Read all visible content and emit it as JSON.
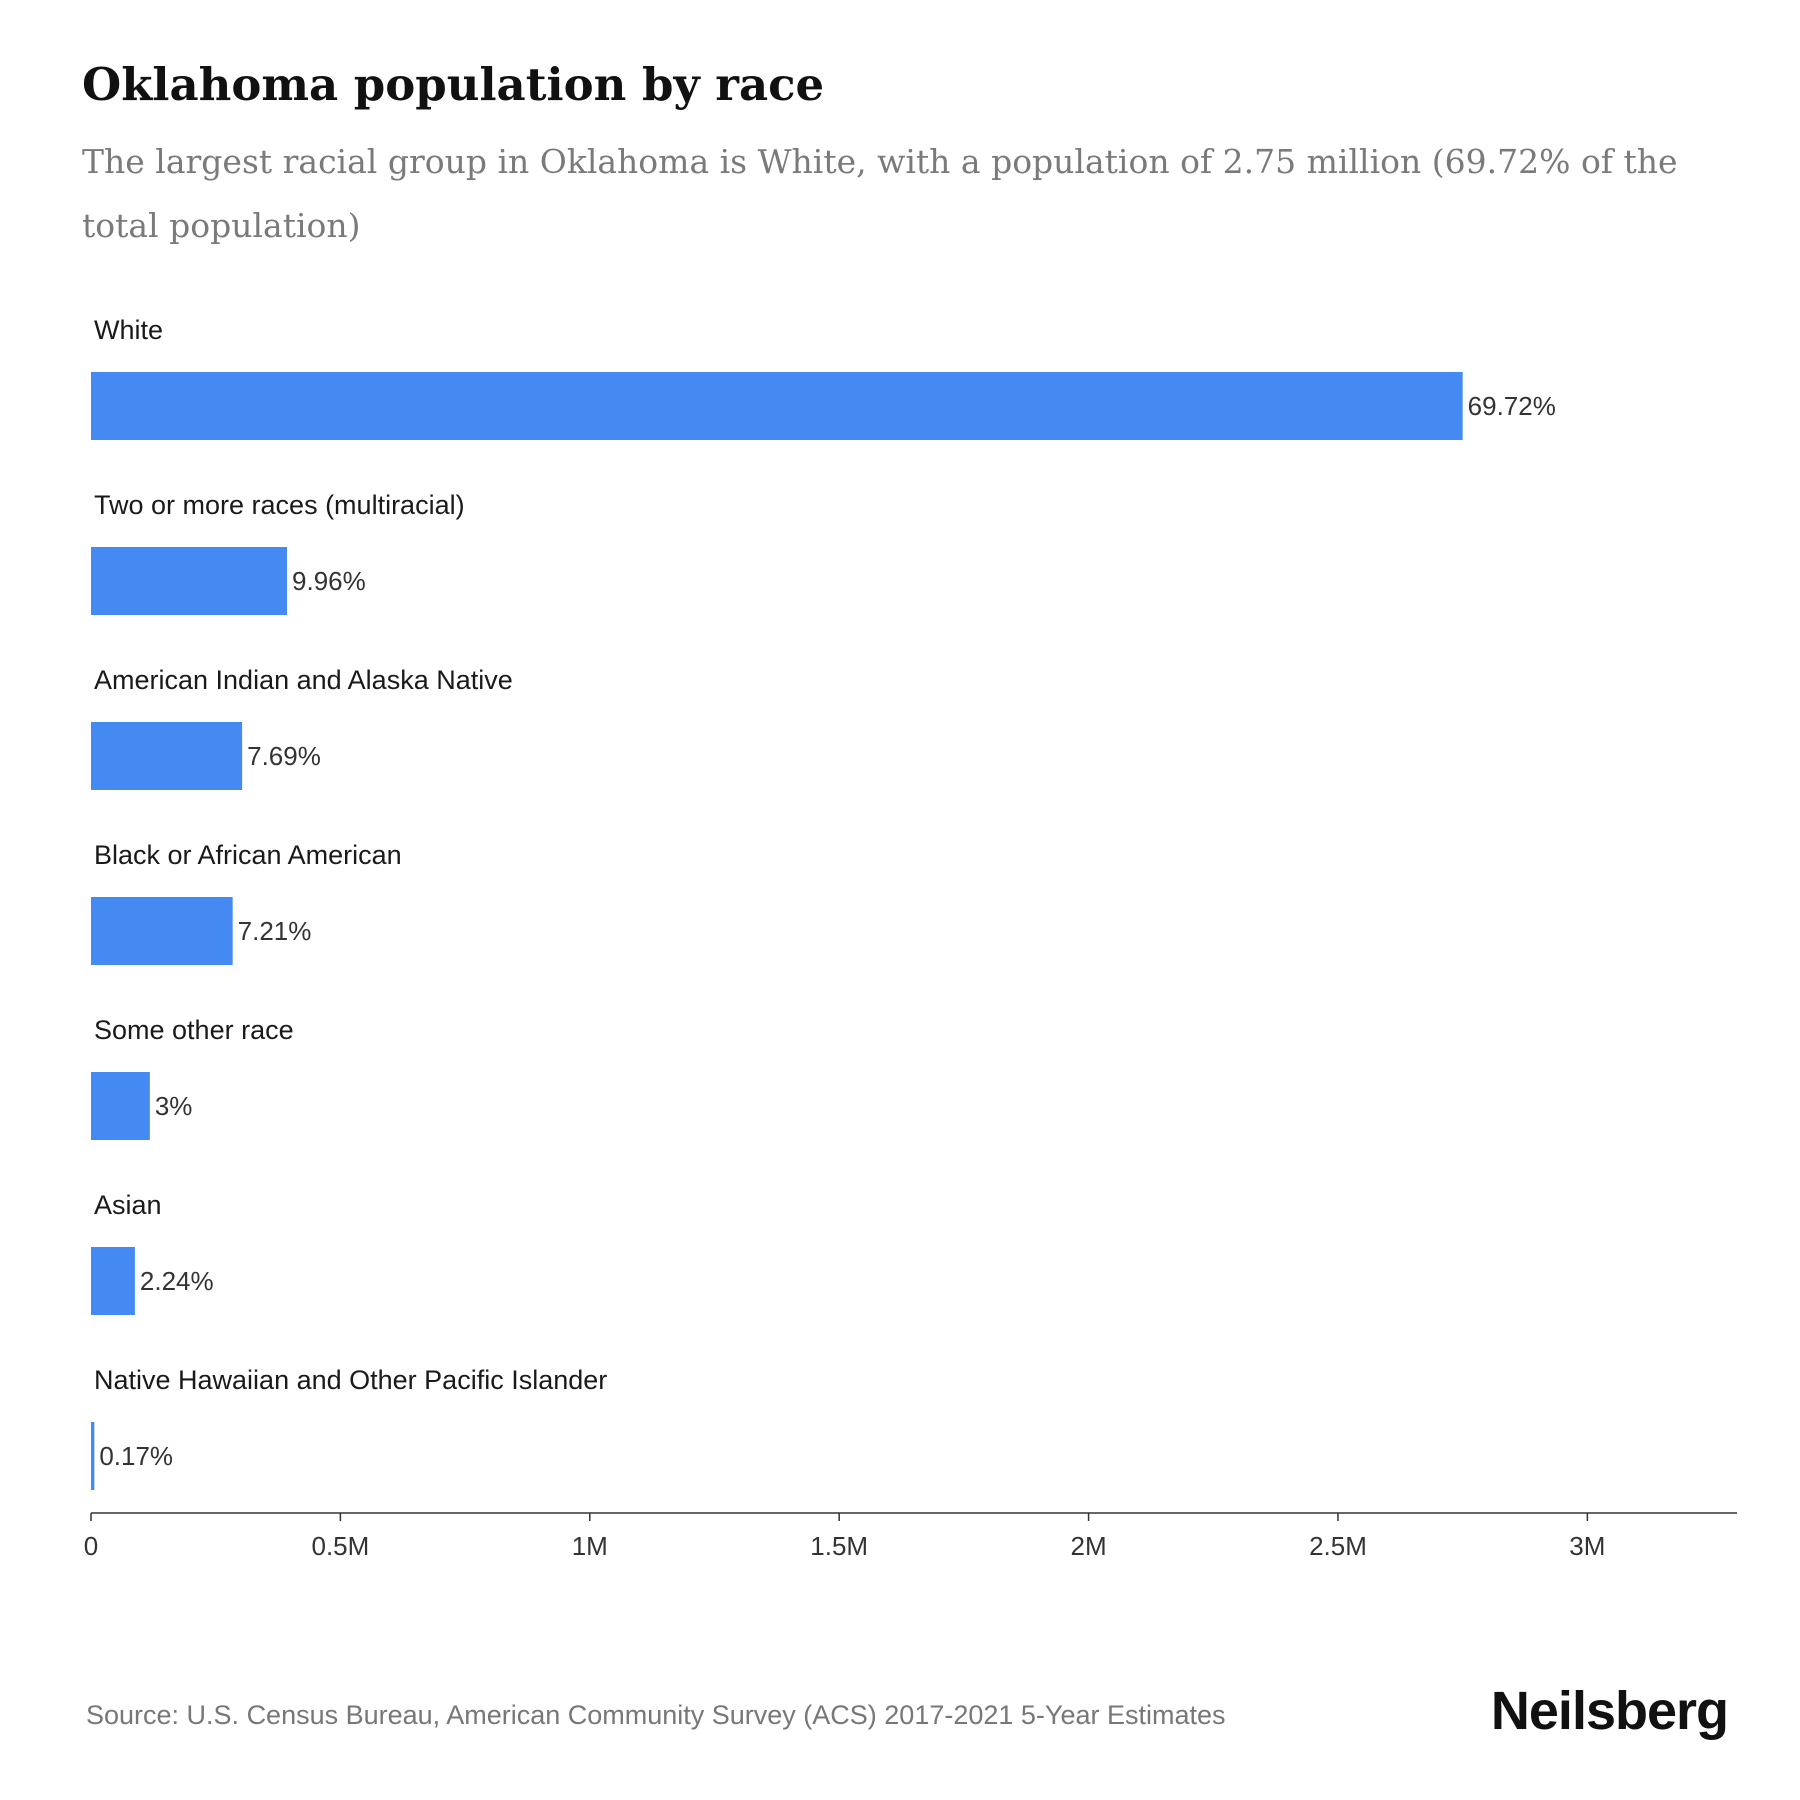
{
  "title": "Oklahoma population by race",
  "subtitle": "The largest racial group in Oklahoma is White, with a population of 2.75 million (69.72% of the total population)",
  "source": "Source: U.S. Census Bureau, American Community Survey (ACS) 2017-2021 5-Year Estimates",
  "brand": "Neilsberg",
  "colors": {
    "bar": "#4589f3",
    "axis": "#333333"
  },
  "chart_data": {
    "type": "bar",
    "orientation": "horizontal",
    "categories": [
      "White",
      "Two or more races (multiracial)",
      "American Indian and Alaska Native",
      "Black or African American",
      "Some other race",
      "Asian",
      "Native Hawaiian and Other Pacific Islander"
    ],
    "values": [
      2750000,
      393000,
      303000,
      284000,
      118000,
      88000,
      6700
    ],
    "percent_labels": [
      "69.72%",
      "9.96%",
      "7.69%",
      "7.21%",
      "3%",
      "2.24%",
      "0.17%"
    ],
    "xlim": [
      0,
      3300000
    ],
    "xticks": [
      0,
      500000,
      1000000,
      1500000,
      2000000,
      2500000,
      3000000
    ],
    "xtick_labels": [
      "0",
      "0.5M",
      "1M",
      "1.5M",
      "2M",
      "2.5M",
      "3M"
    ],
    "grid": false,
    "legend": "none"
  }
}
